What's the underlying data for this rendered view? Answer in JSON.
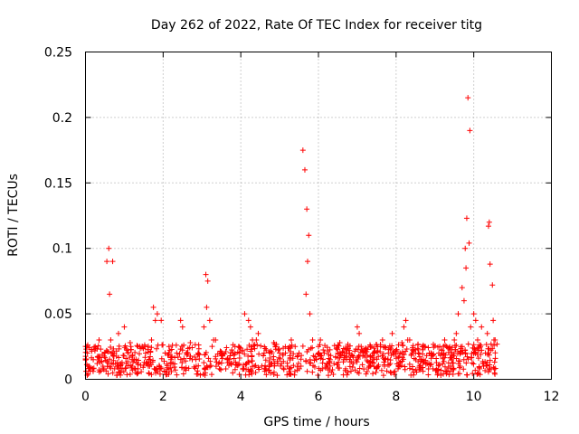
{
  "chart_data": {
    "type": "scatter",
    "title": "Day 262 of 2022, Rate Of TEC Index for receiver titg",
    "xlabel": "GPS time / hours",
    "ylabel": "ROTI / TECUs",
    "xlim": [
      0,
      12
    ],
    "ylim": [
      0,
      0.25
    ],
    "xticks": [
      0,
      2,
      4,
      6,
      8,
      10,
      12
    ],
    "yticks": [
      0,
      0.05,
      0.1,
      0.15,
      0.2,
      0.25
    ],
    "ytick_labels": [
      "0",
      "0.05",
      "0.1",
      "0.15",
      "0.2",
      "0.25"
    ],
    "grid": true,
    "marker": "+",
    "color": "#ff0000",
    "series": [
      {
        "name": "ROTI",
        "x": [
          0.05,
          0.2,
          0.35,
          0.5,
          0.6,
          0.7,
          0.85,
          1.0,
          1.1,
          1.25,
          1.4,
          1.55,
          1.75,
          1.85,
          1.95,
          2.05,
          2.2,
          2.35,
          2.45,
          2.6,
          2.75,
          2.9,
          3.05,
          3.1,
          3.15,
          3.3,
          3.5,
          3.65,
          3.8,
          3.95,
          4.1,
          4.2,
          4.3,
          4.45,
          4.6,
          4.75,
          4.9,
          5.0,
          5.15,
          5.3,
          5.5,
          5.6,
          5.65,
          5.7,
          5.75,
          5.85,
          6.0,
          6.15,
          6.3,
          6.5,
          6.65,
          6.8,
          7.0,
          7.05,
          7.2,
          7.4,
          7.6,
          7.8,
          7.9,
          8.1,
          8.2,
          8.25,
          8.35,
          8.5,
          8.7,
          8.9,
          9.1,
          9.3,
          9.5,
          9.6,
          9.7,
          9.75,
          9.8,
          9.85,
          9.9,
          10.0,
          10.05,
          10.1,
          10.2,
          10.3,
          10.35,
          10.4,
          10.5,
          10.55,
          0.1,
          0.3,
          0.55,
          0.62,
          0.9,
          1.2,
          1.6,
          1.8,
          2.5,
          3.12,
          3.2,
          4.15,
          4.25,
          4.8,
          5.2,
          5.68,
          5.72,
          5.78,
          6.2,
          6.9,
          7.7,
          8.3,
          8.8,
          9.4,
          9.78,
          9.82,
          9.88,
          10.38,
          10.42,
          10.48,
          0.15,
          0.45,
          0.75,
          1.05,
          1.35,
          1.65,
          1.95,
          2.25,
          2.55,
          2.85,
          3.45,
          3.75,
          4.05,
          4.35,
          4.65,
          4.95,
          5.25,
          5.55,
          6.1,
          6.4,
          6.7,
          7.3,
          7.5,
          7.85,
          8.05,
          8.6,
          8.95,
          9.2,
          9.45,
          9.65,
          10.15,
          10.25,
          10.45,
          0.25,
          0.65,
          1.15,
          1.7,
          2.15,
          2.7,
          3.35,
          3.85,
          4.4,
          4.85,
          5.4,
          6.05,
          6.55,
          7.1,
          7.65,
          8.15,
          8.75,
          9.25,
          9.55,
          9.92,
          10.52
        ],
        "y": [
          0.02,
          0.015,
          0.03,
          0.02,
          0.1,
          0.09,
          0.035,
          0.04,
          0.02,
          0.015,
          0.025,
          0.02,
          0.055,
          0.05,
          0.045,
          0.02,
          0.015,
          0.02,
          0.045,
          0.02,
          0.015,
          0.02,
          0.04,
          0.08,
          0.075,
          0.03,
          0.02,
          0.015,
          0.02,
          0.025,
          0.05,
          0.045,
          0.03,
          0.035,
          0.02,
          0.02,
          0.025,
          0.02,
          0.02,
          0.03,
          0.02,
          0.175,
          0.16,
          0.13,
          0.11,
          0.03,
          0.025,
          0.02,
          0.015,
          0.02,
          0.015,
          0.02,
          0.04,
          0.035,
          0.02,
          0.015,
          0.025,
          0.02,
          0.035,
          0.02,
          0.04,
          0.045,
          0.03,
          0.02,
          0.015,
          0.02,
          0.02,
          0.025,
          0.03,
          0.05,
          0.07,
          0.06,
          0.085,
          0.215,
          0.19,
          0.05,
          0.045,
          0.03,
          0.04,
          0.02,
          0.035,
          0.12,
          0.045,
          0.03,
          0.01,
          0.012,
          0.09,
          0.065,
          0.012,
          0.01,
          0.012,
          0.045,
          0.04,
          0.055,
          0.045,
          0.012,
          0.04,
          0.012,
          0.01,
          0.065,
          0.09,
          0.05,
          0.01,
          0.012,
          0.01,
          0.03,
          0.012,
          0.01,
          0.1,
          0.123,
          0.104,
          0.117,
          0.088,
          0.072,
          0.008,
          0.01,
          0.008,
          0.012,
          0.008,
          0.01,
          0.008,
          0.012,
          0.008,
          0.01,
          0.008,
          0.012,
          0.008,
          0.01,
          0.008,
          0.012,
          0.008,
          0.01,
          0.008,
          0.012,
          0.008,
          0.01,
          0.008,
          0.012,
          0.008,
          0.01,
          0.008,
          0.012,
          0.008,
          0.01,
          0.008,
          0.012,
          0.008,
          0.025,
          0.03,
          0.028,
          0.03,
          0.025,
          0.028,
          0.03,
          0.025,
          0.03,
          0.028,
          0.025,
          0.03,
          0.028,
          0.025,
          0.03,
          0.028,
          0.025,
          0.03,
          0.035,
          0.04,
          0.03
        ]
      }
    ]
  }
}
